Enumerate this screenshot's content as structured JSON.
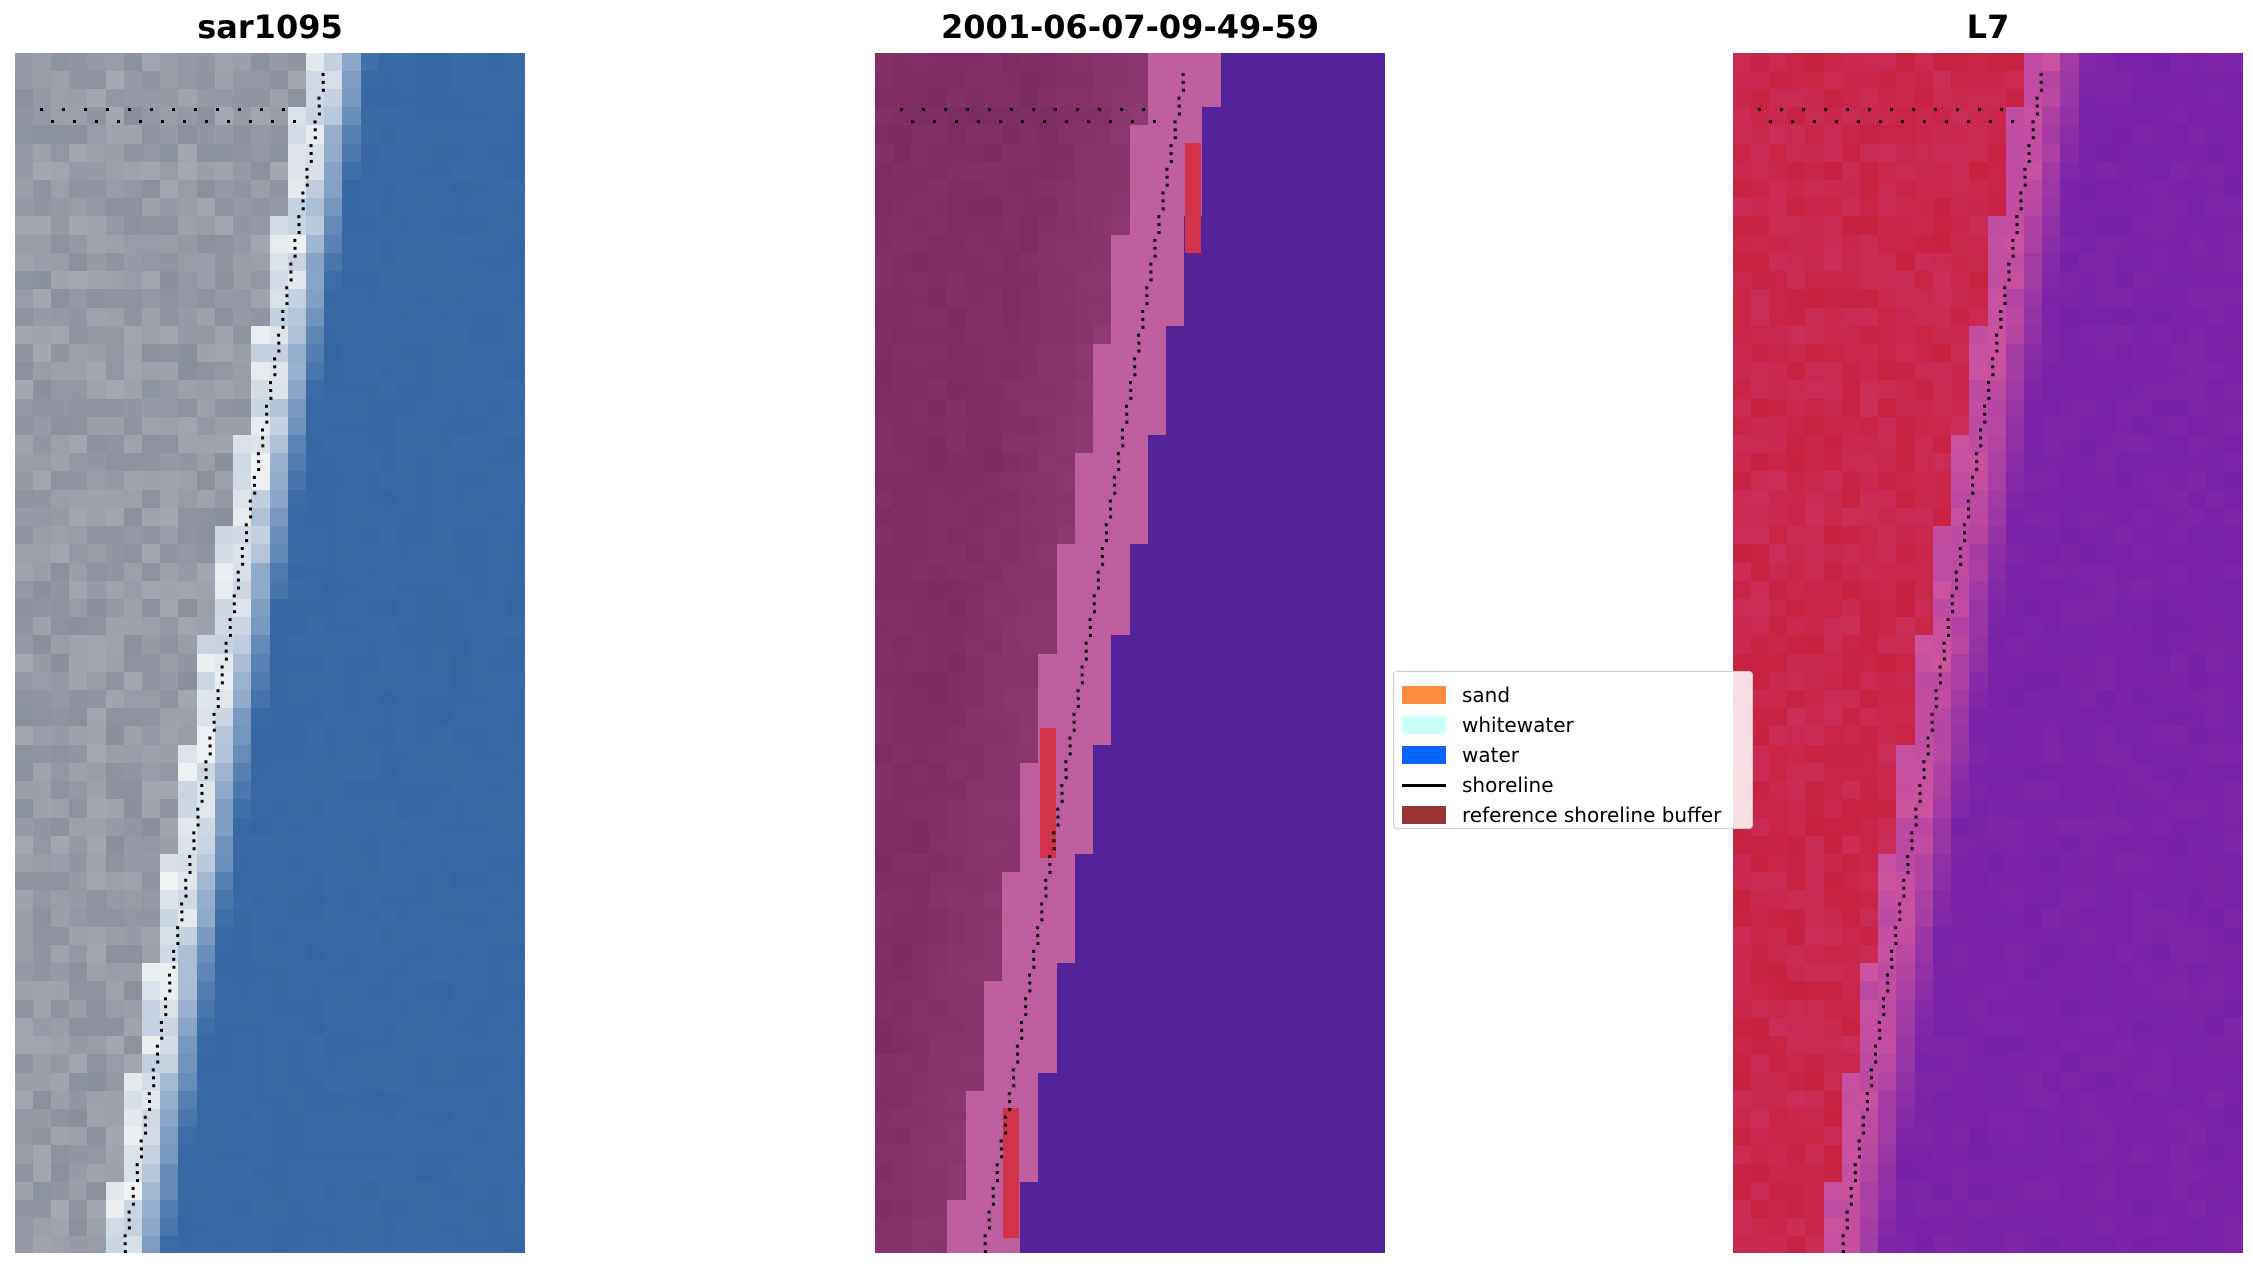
{
  "panels": [
    {
      "title": "sar1095",
      "kind": "rgb-satellite-image"
    },
    {
      "title": "2001-06-07-09-49-59",
      "kind": "classified-image"
    },
    {
      "title": "L7",
      "kind": "false-color-image"
    }
  ],
  "legend": {
    "items": [
      {
        "label": "sand",
        "color": "#ff8c3c",
        "type": "patch"
      },
      {
        "label": "whitewater",
        "color": "#c8fff8",
        "type": "patch"
      },
      {
        "label": "water",
        "color": "#0a64ff",
        "type": "patch"
      },
      {
        "label": "shoreline",
        "color": "#000000",
        "type": "line"
      },
      {
        "label": "reference shoreline buffer",
        "color": "#983434",
        "type": "patch"
      }
    ]
  },
  "colors": {
    "water_rgb": "#3a6aa6",
    "land_rgb": "#8a8f9c",
    "beach_rgb": "#f2f3f4",
    "water_class": "#54239a",
    "land_class": "#7d2c62",
    "beach_class": "#bf5f9f",
    "buffer": "#d1344a",
    "water_fc": "#7e25a8",
    "land_fc": "#c8203f",
    "beach_fc": "#d055a0",
    "shoreline_dots": "#000000"
  }
}
